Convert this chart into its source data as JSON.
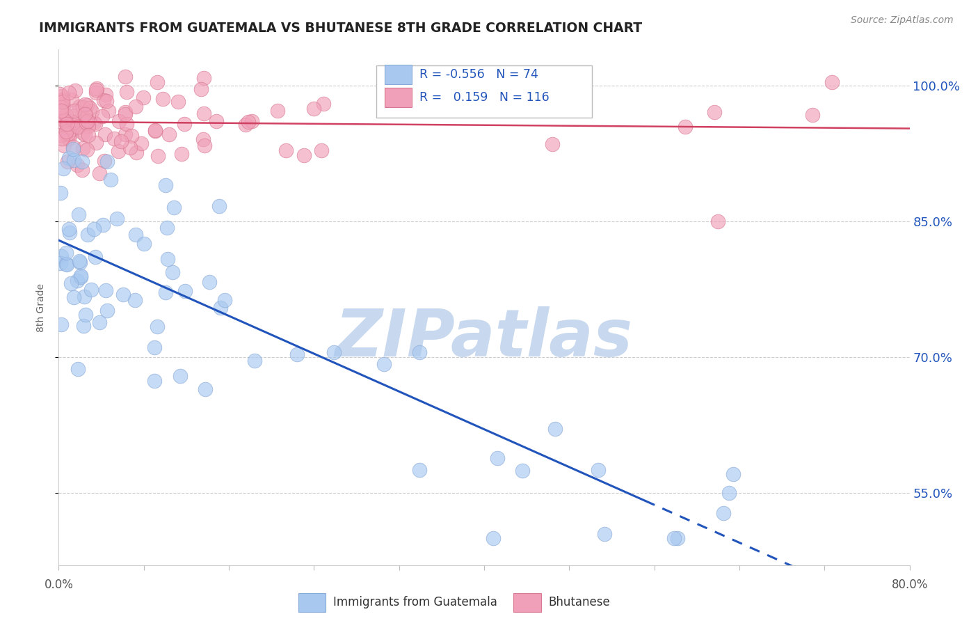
{
  "title": "IMMIGRANTS FROM GUATEMALA VS BHUTANESE 8TH GRADE CORRELATION CHART",
  "source": "Source: ZipAtlas.com",
  "ylabel": "8th Grade",
  "yticks": [
    55.0,
    70.0,
    85.0,
    100.0
  ],
  "xlim": [
    0.0,
    80.0
  ],
  "ylim": [
    47.0,
    104.0
  ],
  "blue_R": -0.556,
  "blue_N": 74,
  "pink_R": 0.159,
  "pink_N": 116,
  "blue_color": "#A8C8F0",
  "blue_edge": "#88AAD8",
  "pink_color": "#F0A0B8",
  "pink_edge": "#D87890",
  "blue_line_color": "#2255BB",
  "pink_line_color": "#D04060",
  "watermark_color": "#C8D8EE",
  "legend_blue_label": "Immigrants from Guatemala",
  "legend_pink_label": "Bhutanese"
}
